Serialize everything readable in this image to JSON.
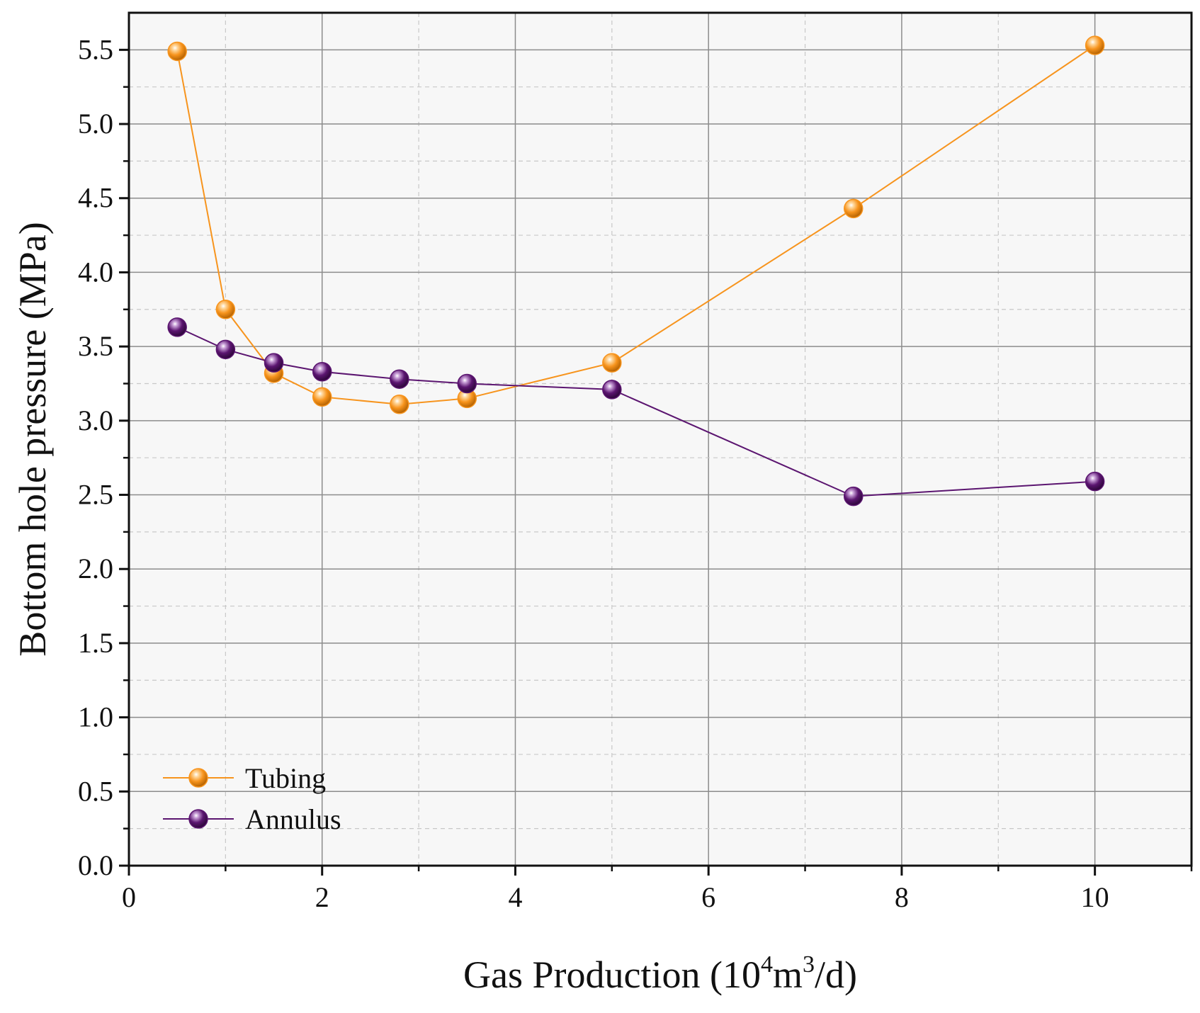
{
  "chart_data": {
    "type": "line",
    "xlabel": {
      "main": "Gas Production (10",
      "exp1": "4",
      "mid": "m",
      "exp2": "3",
      "end": "/d)"
    },
    "ylabel": "Bottom hole pressure (MPa)",
    "xlim": [
      0,
      11
    ],
    "ylim": [
      0,
      5.75
    ],
    "x_ticks": [
      "0",
      "2",
      "4",
      "6",
      "8",
      "10"
    ],
    "y_ticks": [
      "0.0",
      "0.5",
      "1.0",
      "1.5",
      "2.0",
      "2.5",
      "3.0",
      "3.5",
      "4.0",
      "4.5",
      "5.0",
      "5.5"
    ],
    "grid": true,
    "legend_position": "bottom-left",
    "series": [
      {
        "name": "Tubing",
        "color": "#F7941D",
        "x": [
          0.5,
          1.0,
          1.5,
          2.0,
          2.8,
          3.5,
          5.0,
          7.5,
          10.0
        ],
        "y": [
          5.49,
          3.75,
          3.32,
          3.16,
          3.11,
          3.15,
          3.39,
          4.43,
          5.53
        ]
      },
      {
        "name": "Annulus",
        "color": "#5B1570",
        "x": [
          0.5,
          1.0,
          1.5,
          2.0,
          2.8,
          3.5,
          5.0,
          7.5,
          10.0
        ],
        "y": [
          3.63,
          3.48,
          3.39,
          3.33,
          3.28,
          3.25,
          3.21,
          2.49,
          2.59
        ]
      }
    ]
  }
}
